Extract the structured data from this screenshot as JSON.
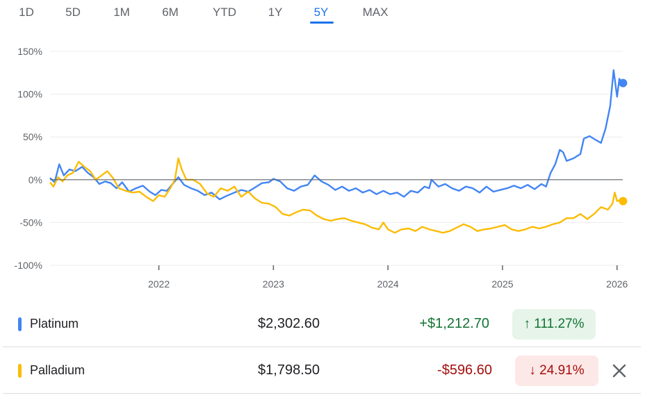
{
  "range_tabs": [
    {
      "label": "1D",
      "active": false
    },
    {
      "label": "5D",
      "active": false
    },
    {
      "label": "1M",
      "active": false
    },
    {
      "label": "6M",
      "active": false
    },
    {
      "label": "YTD",
      "active": false
    },
    {
      "label": "1Y",
      "active": false
    },
    {
      "label": "5Y",
      "active": true
    },
    {
      "label": "MAX",
      "active": false
    }
  ],
  "colors": {
    "platinum": "#4285f4",
    "palladium": "#fbbc04",
    "accent": "#1a73e8",
    "positive": "#137333",
    "negative": "#a50e0e"
  },
  "chart_data": {
    "type": "line",
    "y_unit": "%",
    "ylim": [
      -100,
      150
    ],
    "yticks": [
      150,
      100,
      50,
      0,
      -50,
      -100
    ],
    "ytick_labels": [
      "150%",
      "100%",
      "50%",
      "0%",
      "-50%",
      "-100%"
    ],
    "xlim": [
      2021.05,
      2026.05
    ],
    "xticks": [
      2022,
      2023,
      2024,
      2025,
      2026
    ],
    "xtick_labels": [
      "2022",
      "2023",
      "2024",
      "2025",
      "2026"
    ],
    "grid": "horizontal",
    "baseline": 0,
    "series": [
      {
        "name": "Platinum",
        "color": "#4285f4",
        "points": [
          [
            2021.05,
            2
          ],
          [
            2021.09,
            -3
          ],
          [
            2021.13,
            18
          ],
          [
            2021.17,
            5
          ],
          [
            2021.22,
            12
          ],
          [
            2021.27,
            10
          ],
          [
            2021.33,
            15
          ],
          [
            2021.38,
            8
          ],
          [
            2021.43,
            3
          ],
          [
            2021.48,
            -5
          ],
          [
            2021.53,
            -2
          ],
          [
            2021.58,
            -4
          ],
          [
            2021.63,
            -10
          ],
          [
            2021.68,
            -3
          ],
          [
            2021.74,
            -14
          ],
          [
            2021.8,
            -10
          ],
          [
            2021.86,
            -7
          ],
          [
            2021.92,
            -14
          ],
          [
            2021.97,
            -18
          ],
          [
            2022.02,
            -12
          ],
          [
            2022.07,
            -13
          ],
          [
            2022.12,
            -5
          ],
          [
            2022.17,
            3
          ],
          [
            2022.22,
            -6
          ],
          [
            2022.28,
            -10
          ],
          [
            2022.34,
            -13
          ],
          [
            2022.4,
            -18
          ],
          [
            2022.46,
            -15
          ],
          [
            2022.53,
            -23
          ],
          [
            2022.59,
            -19
          ],
          [
            2022.66,
            -15
          ],
          [
            2022.72,
            -12
          ],
          [
            2022.78,
            -14
          ],
          [
            2022.84,
            -9
          ],
          [
            2022.9,
            -4
          ],
          [
            2022.96,
            -3
          ],
          [
            2023.0,
            1
          ],
          [
            2023.06,
            -2
          ],
          [
            2023.12,
            -10
          ],
          [
            2023.18,
            -13
          ],
          [
            2023.24,
            -8
          ],
          [
            2023.3,
            -6
          ],
          [
            2023.36,
            5
          ],
          [
            2023.42,
            -2
          ],
          [
            2023.48,
            -6
          ],
          [
            2023.54,
            -12
          ],
          [
            2023.6,
            -8
          ],
          [
            2023.66,
            -13
          ],
          [
            2023.72,
            -10
          ],
          [
            2023.78,
            -15
          ],
          [
            2023.84,
            -12
          ],
          [
            2023.9,
            -17
          ],
          [
            2023.96,
            -13
          ],
          [
            2024.02,
            -17
          ],
          [
            2024.08,
            -15
          ],
          [
            2024.14,
            -20
          ],
          [
            2024.2,
            -13
          ],
          [
            2024.26,
            -15
          ],
          [
            2024.32,
            -8
          ],
          [
            2024.36,
            -10
          ],
          [
            2024.38,
            0
          ],
          [
            2024.44,
            -8
          ],
          [
            2024.5,
            -5
          ],
          [
            2024.56,
            -10
          ],
          [
            2024.62,
            -13
          ],
          [
            2024.68,
            -8
          ],
          [
            2024.74,
            -10
          ],
          [
            2024.8,
            -15
          ],
          [
            2024.86,
            -8
          ],
          [
            2024.92,
            -14
          ],
          [
            2024.98,
            -12
          ],
          [
            2025.04,
            -10
          ],
          [
            2025.1,
            -7
          ],
          [
            2025.16,
            -10
          ],
          [
            2025.22,
            -6
          ],
          [
            2025.28,
            -11
          ],
          [
            2025.34,
            -5
          ],
          [
            2025.38,
            -8
          ],
          [
            2025.42,
            8
          ],
          [
            2025.46,
            18
          ],
          [
            2025.5,
            35
          ],
          [
            2025.53,
            32
          ],
          [
            2025.56,
            22
          ],
          [
            2025.62,
            25
          ],
          [
            2025.68,
            30
          ],
          [
            2025.71,
            48
          ],
          [
            2025.76,
            51
          ],
          [
            2025.82,
            46
          ],
          [
            2025.86,
            43
          ],
          [
            2025.9,
            60
          ],
          [
            2025.94,
            86
          ],
          [
            2025.97,
            128
          ],
          [
            2026.0,
            97
          ],
          [
            2026.02,
            118
          ],
          [
            2026.04,
            113
          ]
        ]
      },
      {
        "name": "Palladium",
        "color": "#fbbc04",
        "points": [
          [
            2021.05,
            -3
          ],
          [
            2021.08,
            -8
          ],
          [
            2021.12,
            3
          ],
          [
            2021.16,
            -2
          ],
          [
            2021.2,
            5
          ],
          [
            2021.25,
            8
          ],
          [
            2021.3,
            21
          ],
          [
            2021.35,
            15
          ],
          [
            2021.4,
            10
          ],
          [
            2021.45,
            0
          ],
          [
            2021.5,
            5
          ],
          [
            2021.55,
            10
          ],
          [
            2021.6,
            2
          ],
          [
            2021.65,
            -10
          ],
          [
            2021.71,
            -13
          ],
          [
            2021.77,
            -15
          ],
          [
            2021.83,
            -14
          ],
          [
            2021.89,
            -20
          ],
          [
            2021.95,
            -25
          ],
          [
            2022.0,
            -18
          ],
          [
            2022.05,
            -20
          ],
          [
            2022.1,
            -10
          ],
          [
            2022.14,
            0
          ],
          [
            2022.17,
            25
          ],
          [
            2022.2,
            12
          ],
          [
            2022.24,
            0
          ],
          [
            2022.3,
            0
          ],
          [
            2022.36,
            -5
          ],
          [
            2022.42,
            -16
          ],
          [
            2022.48,
            -20
          ],
          [
            2022.54,
            -10
          ],
          [
            2022.6,
            -13
          ],
          [
            2022.66,
            -8
          ],
          [
            2022.72,
            -20
          ],
          [
            2022.78,
            -14
          ],
          [
            2022.84,
            -22
          ],
          [
            2022.9,
            -27
          ],
          [
            2022.96,
            -28
          ],
          [
            2023.02,
            -32
          ],
          [
            2023.08,
            -40
          ],
          [
            2023.14,
            -42
          ],
          [
            2023.2,
            -38
          ],
          [
            2023.26,
            -35
          ],
          [
            2023.32,
            -36
          ],
          [
            2023.38,
            -42
          ],
          [
            2023.44,
            -46
          ],
          [
            2023.5,
            -48
          ],
          [
            2023.56,
            -46
          ],
          [
            2023.62,
            -45
          ],
          [
            2023.68,
            -48
          ],
          [
            2023.74,
            -50
          ],
          [
            2023.8,
            -52
          ],
          [
            2023.86,
            -56
          ],
          [
            2023.92,
            -58
          ],
          [
            2023.96,
            -50
          ],
          [
            2024.0,
            -58
          ],
          [
            2024.06,
            -62
          ],
          [
            2024.12,
            -58
          ],
          [
            2024.18,
            -57
          ],
          [
            2024.24,
            -60
          ],
          [
            2024.3,
            -55
          ],
          [
            2024.36,
            -58
          ],
          [
            2024.42,
            -60
          ],
          [
            2024.48,
            -62
          ],
          [
            2024.54,
            -60
          ],
          [
            2024.6,
            -56
          ],
          [
            2024.66,
            -52
          ],
          [
            2024.72,
            -55
          ],
          [
            2024.78,
            -60
          ],
          [
            2024.84,
            -58
          ],
          [
            2024.9,
            -57
          ],
          [
            2024.96,
            -55
          ],
          [
            2025.02,
            -53
          ],
          [
            2025.08,
            -58
          ],
          [
            2025.14,
            -60
          ],
          [
            2025.2,
            -58
          ],
          [
            2025.26,
            -55
          ],
          [
            2025.32,
            -57
          ],
          [
            2025.38,
            -55
          ],
          [
            2025.44,
            -52
          ],
          [
            2025.5,
            -50
          ],
          [
            2025.56,
            -45
          ],
          [
            2025.62,
            -45
          ],
          [
            2025.68,
            -40
          ],
          [
            2025.74,
            -46
          ],
          [
            2025.8,
            -40
          ],
          [
            2025.86,
            -32
          ],
          [
            2025.92,
            -35
          ],
          [
            2025.96,
            -28
          ],
          [
            2025.98,
            -15
          ],
          [
            2026.0,
            -25
          ],
          [
            2026.02,
            -24
          ],
          [
            2026.04,
            -25
          ]
        ]
      }
    ]
  },
  "table": {
    "rows": [
      {
        "name": "Platinum",
        "price": "$2,302.60",
        "change": "+$1,212.70",
        "pct": "↑ 111.27%",
        "direction": "up"
      },
      {
        "name": "Palladium",
        "price": "$1,798.50",
        "change": "-$596.60",
        "pct": "↓ 24.91%",
        "direction": "down"
      }
    ]
  }
}
